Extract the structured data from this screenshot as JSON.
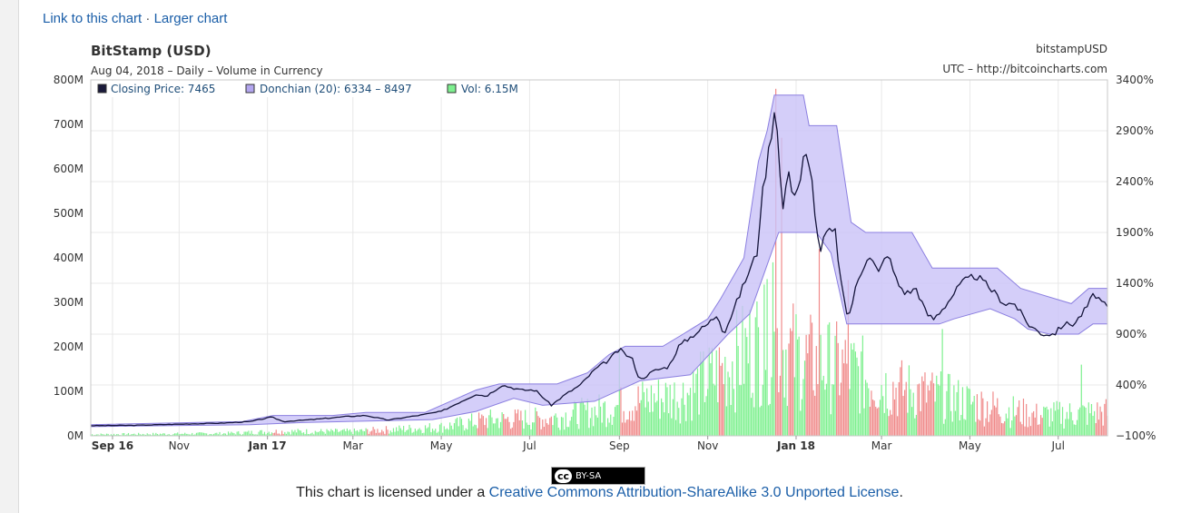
{
  "links": {
    "link_chart": "Link to this chart",
    "separator": "·",
    "larger_chart": "Larger chart"
  },
  "header": {
    "title": "BitStamp (USD)",
    "subtitle": "Aug 04, 2018 – Daily – Volume in Currency",
    "right_top": "bitstampUSD",
    "right_bottom": "UTC – http://bitcoincharts.com"
  },
  "legend": [
    {
      "label": "Closing Price: 7465",
      "color": "#1a1a3a"
    },
    {
      "label": "Donchian (20): 6334 – 8497",
      "color": "#b3a6ef"
    },
    {
      "label": "Vol: 6.15M",
      "color": "#7ef08f"
    }
  ],
  "license": {
    "badge": "BY-SA",
    "badge_cc": "cc",
    "prefix": "This chart is licensed under a ",
    "link": "Creative Commons Attribution-ShareAlike 3.0 Unported License",
    "suffix": "."
  },
  "colors": {
    "price": "#14143a",
    "band_fill": "#c9c2f7",
    "band_stroke": "#8b7fe0",
    "vol_up": "#7ef08f",
    "vol_down": "#f08a8a",
    "grid": "#e8e8e8"
  },
  "chart_data": {
    "type": "line",
    "x_axis": {
      "type": "date",
      "range": [
        "2016-09-01",
        "2018-08-04"
      ],
      "ticks": [
        {
          "date": "2016-09-16",
          "label": "Sep 16",
          "bold": true
        },
        {
          "date": "2016-11-01",
          "label": "Nov",
          "bold": false
        },
        {
          "date": "2017-01-01",
          "label": "Jan 17",
          "bold": true
        },
        {
          "date": "2017-03-01",
          "label": "Mar",
          "bold": false
        },
        {
          "date": "2017-05-01",
          "label": "May",
          "bold": false
        },
        {
          "date": "2017-07-01",
          "label": "Jul",
          "bold": false
        },
        {
          "date": "2017-09-01",
          "label": "Sep",
          "bold": false
        },
        {
          "date": "2017-11-01",
          "label": "Nov",
          "bold": false
        },
        {
          "date": "2018-01-01",
          "label": "Jan 18",
          "bold": true
        },
        {
          "date": "2018-03-01",
          "label": "Mar",
          "bold": false
        },
        {
          "date": "2018-05-01",
          "label": "May",
          "bold": false
        },
        {
          "date": "2018-07-01",
          "label": "Jul",
          "bold": false
        }
      ]
    },
    "y_left": {
      "range": [
        0,
        800
      ],
      "unit": "M",
      "ticks": [
        "0M",
        "100M",
        "200M",
        "300M",
        "400M",
        "500M",
        "600M",
        "700M",
        "800M"
      ]
    },
    "y_right": {
      "range": [
        -100,
        3400
      ],
      "unit": "%",
      "ticks": [
        "−100%",
        "400%",
        "900%",
        "1400%",
        "1900%",
        "2400%",
        "2900%",
        "3400%"
      ]
    },
    "grid": true,
    "legend_position": "top-left",
    "series": [
      {
        "name": "Closing Price",
        "unit": "% change",
        "points": [
          [
            "2016-09-01",
            0
          ],
          [
            "2016-10-01",
            3
          ],
          [
            "2016-11-01",
            15
          ],
          [
            "2016-12-01",
            25
          ],
          [
            "2016-12-20",
            40
          ],
          [
            "2017-01-04",
            85
          ],
          [
            "2017-01-12",
            40
          ],
          [
            "2017-02-01",
            60
          ],
          [
            "2017-02-25",
            90
          ],
          [
            "2017-03-10",
            100
          ],
          [
            "2017-03-25",
            55
          ],
          [
            "2017-04-15",
            100
          ],
          [
            "2017-05-01",
            140
          ],
          [
            "2017-05-15",
            240
          ],
          [
            "2017-05-25",
            310
          ],
          [
            "2017-06-01",
            290
          ],
          [
            "2017-06-12",
            400
          ],
          [
            "2017-06-25",
            350
          ],
          [
            "2017-07-05",
            350
          ],
          [
            "2017-07-16",
            200
          ],
          [
            "2017-07-25",
            300
          ],
          [
            "2017-08-05",
            400
          ],
          [
            "2017-08-15",
            550
          ],
          [
            "2017-08-25",
            650
          ],
          [
            "2017-09-01",
            750
          ],
          [
            "2017-09-10",
            650
          ],
          [
            "2017-09-15",
            450
          ],
          [
            "2017-09-25",
            540
          ],
          [
            "2017-10-05",
            580
          ],
          [
            "2017-10-12",
            780
          ],
          [
            "2017-10-20",
            870
          ],
          [
            "2017-11-01",
            1000
          ],
          [
            "2017-11-08",
            1100
          ],
          [
            "2017-11-12",
            900
          ],
          [
            "2017-11-20",
            1180
          ],
          [
            "2017-11-29",
            1500
          ],
          [
            "2017-12-05",
            1700
          ],
          [
            "2017-12-08",
            2200
          ],
          [
            "2017-12-11",
            2500
          ],
          [
            "2017-12-15",
            2900
          ],
          [
            "2017-12-17",
            3100
          ],
          [
            "2017-12-20",
            2900
          ],
          [
            "2017-12-22",
            2000
          ],
          [
            "2017-12-26",
            2500
          ],
          [
            "2017-12-30",
            2300
          ],
          [
            "2018-01-03",
            2350
          ],
          [
            "2018-01-07",
            2700
          ],
          [
            "2018-01-12",
            2400
          ],
          [
            "2018-01-17",
            1700
          ],
          [
            "2018-01-22",
            1900
          ],
          [
            "2018-01-28",
            1900
          ],
          [
            "2018-02-02",
            1300
          ],
          [
            "2018-02-06",
            1050
          ],
          [
            "2018-02-12",
            1400
          ],
          [
            "2018-02-20",
            1700
          ],
          [
            "2018-02-27",
            1500
          ],
          [
            "2018-03-05",
            1700
          ],
          [
            "2018-03-12",
            1400
          ],
          [
            "2018-03-18",
            1300
          ],
          [
            "2018-03-25",
            1350
          ],
          [
            "2018-04-01",
            1100
          ],
          [
            "2018-04-06",
            1050
          ],
          [
            "2018-04-15",
            1200
          ],
          [
            "2018-04-25",
            1400
          ],
          [
            "2018-05-05",
            1480
          ],
          [
            "2018-05-15",
            1350
          ],
          [
            "2018-05-25",
            1200
          ],
          [
            "2018-06-01",
            1200
          ],
          [
            "2018-06-10",
            1000
          ],
          [
            "2018-06-20",
            900
          ],
          [
            "2018-06-28",
            900
          ],
          [
            "2018-07-05",
            1000
          ],
          [
            "2018-07-12",
            1000
          ],
          [
            "2018-07-20",
            1150
          ],
          [
            "2018-07-26",
            1300
          ],
          [
            "2018-08-01",
            1200
          ],
          [
            "2018-08-04",
            1150
          ]
        ]
      },
      {
        "name": "Donchian (20)",
        "unit": "% change",
        "upper": [
          [
            "2016-09-01",
            10
          ],
          [
            "2016-12-15",
            40
          ],
          [
            "2017-01-05",
            100
          ],
          [
            "2017-02-15",
            100
          ],
          [
            "2017-03-10",
            130
          ],
          [
            "2017-04-20",
            130
          ],
          [
            "2017-05-25",
            350
          ],
          [
            "2017-06-10",
            410
          ],
          [
            "2017-07-20",
            410
          ],
          [
            "2017-08-10",
            520
          ],
          [
            "2017-08-25",
            700
          ],
          [
            "2017-09-05",
            780
          ],
          [
            "2017-10-01",
            780
          ],
          [
            "2017-10-15",
            900
          ],
          [
            "2017-11-01",
            1050
          ],
          [
            "2017-11-10",
            1250
          ],
          [
            "2017-11-26",
            1650
          ],
          [
            "2017-12-06",
            2600
          ],
          [
            "2017-12-12",
            2900
          ],
          [
            "2017-12-17",
            3250
          ],
          [
            "2018-01-06",
            3250
          ],
          [
            "2018-01-10",
            2950
          ],
          [
            "2018-01-29",
            2950
          ],
          [
            "2018-02-08",
            2000
          ],
          [
            "2018-02-18",
            1900
          ],
          [
            "2018-03-01",
            1900
          ],
          [
            "2018-03-22",
            1900
          ],
          [
            "2018-04-05",
            1550
          ],
          [
            "2018-04-20",
            1550
          ],
          [
            "2018-05-05",
            1550
          ],
          [
            "2018-05-20",
            1550
          ],
          [
            "2018-06-05",
            1350
          ],
          [
            "2018-07-10",
            1200
          ],
          [
            "2018-07-22",
            1350
          ],
          [
            "2018-08-04",
            1350
          ]
        ],
        "lower": [
          [
            "2016-09-01",
            -10
          ],
          [
            "2016-12-20",
            10
          ],
          [
            "2017-01-25",
            30
          ],
          [
            "2017-03-25",
            50
          ],
          [
            "2017-04-25",
            60
          ],
          [
            "2017-05-25",
            140
          ],
          [
            "2017-06-20",
            270
          ],
          [
            "2017-07-10",
            200
          ],
          [
            "2017-08-15",
            240
          ],
          [
            "2017-09-15",
            440
          ],
          [
            "2017-10-20",
            500
          ],
          [
            "2017-11-15",
            900
          ],
          [
            "2017-11-30",
            1100
          ],
          [
            "2017-12-10",
            1500
          ],
          [
            "2017-12-20",
            1900
          ],
          [
            "2018-01-15",
            1900
          ],
          [
            "2018-01-25",
            1700
          ],
          [
            "2018-02-05",
            1000
          ],
          [
            "2018-03-01",
            1000
          ],
          [
            "2018-04-01",
            1000
          ],
          [
            "2018-04-10",
            1000
          ],
          [
            "2018-04-20",
            1050
          ],
          [
            "2018-05-15",
            1150
          ],
          [
            "2018-06-01",
            1050
          ],
          [
            "2018-06-10",
            950
          ],
          [
            "2018-06-25",
            900
          ],
          [
            "2018-07-15",
            900
          ],
          [
            "2018-07-25",
            1000
          ],
          [
            "2018-08-04",
            1000
          ]
        ]
      },
      {
        "name": "Vol",
        "unit": "M",
        "volume_envelope": [
          [
            "2016-09-01",
            5
          ],
          [
            "2016-12-01",
            8
          ],
          [
            "2017-01-05",
            15
          ],
          [
            "2017-03-01",
            15
          ],
          [
            "2017-05-01",
            30
          ],
          [
            "2017-06-01",
            55
          ],
          [
            "2017-07-15",
            60
          ],
          [
            "2017-08-20",
            90
          ],
          [
            "2017-09-15",
            120
          ],
          [
            "2017-10-15",
            140
          ],
          [
            "2017-11-10",
            220
          ],
          [
            "2017-12-01",
            300
          ],
          [
            "2017-12-17",
            330
          ],
          [
            "2018-01-05",
            260
          ],
          [
            "2018-02-05",
            230
          ],
          [
            "2018-03-05",
            170
          ],
          [
            "2018-04-05",
            140
          ],
          [
            "2018-05-05",
            110
          ],
          [
            "2018-06-15",
            70
          ],
          [
            "2018-08-04",
            80
          ]
        ],
        "spikes": [
          [
            "2017-09-01",
            190
          ],
          [
            "2017-12-10",
            340
          ],
          [
            "2017-12-16",
            390
          ],
          [
            "2017-12-18",
            780
          ],
          [
            "2017-12-22",
            670
          ],
          [
            "2018-01-17",
            420
          ],
          [
            "2018-02-06",
            350
          ],
          [
            "2018-04-12",
            240
          ],
          [
            "2018-07-17",
            160
          ]
        ]
      }
    ]
  }
}
